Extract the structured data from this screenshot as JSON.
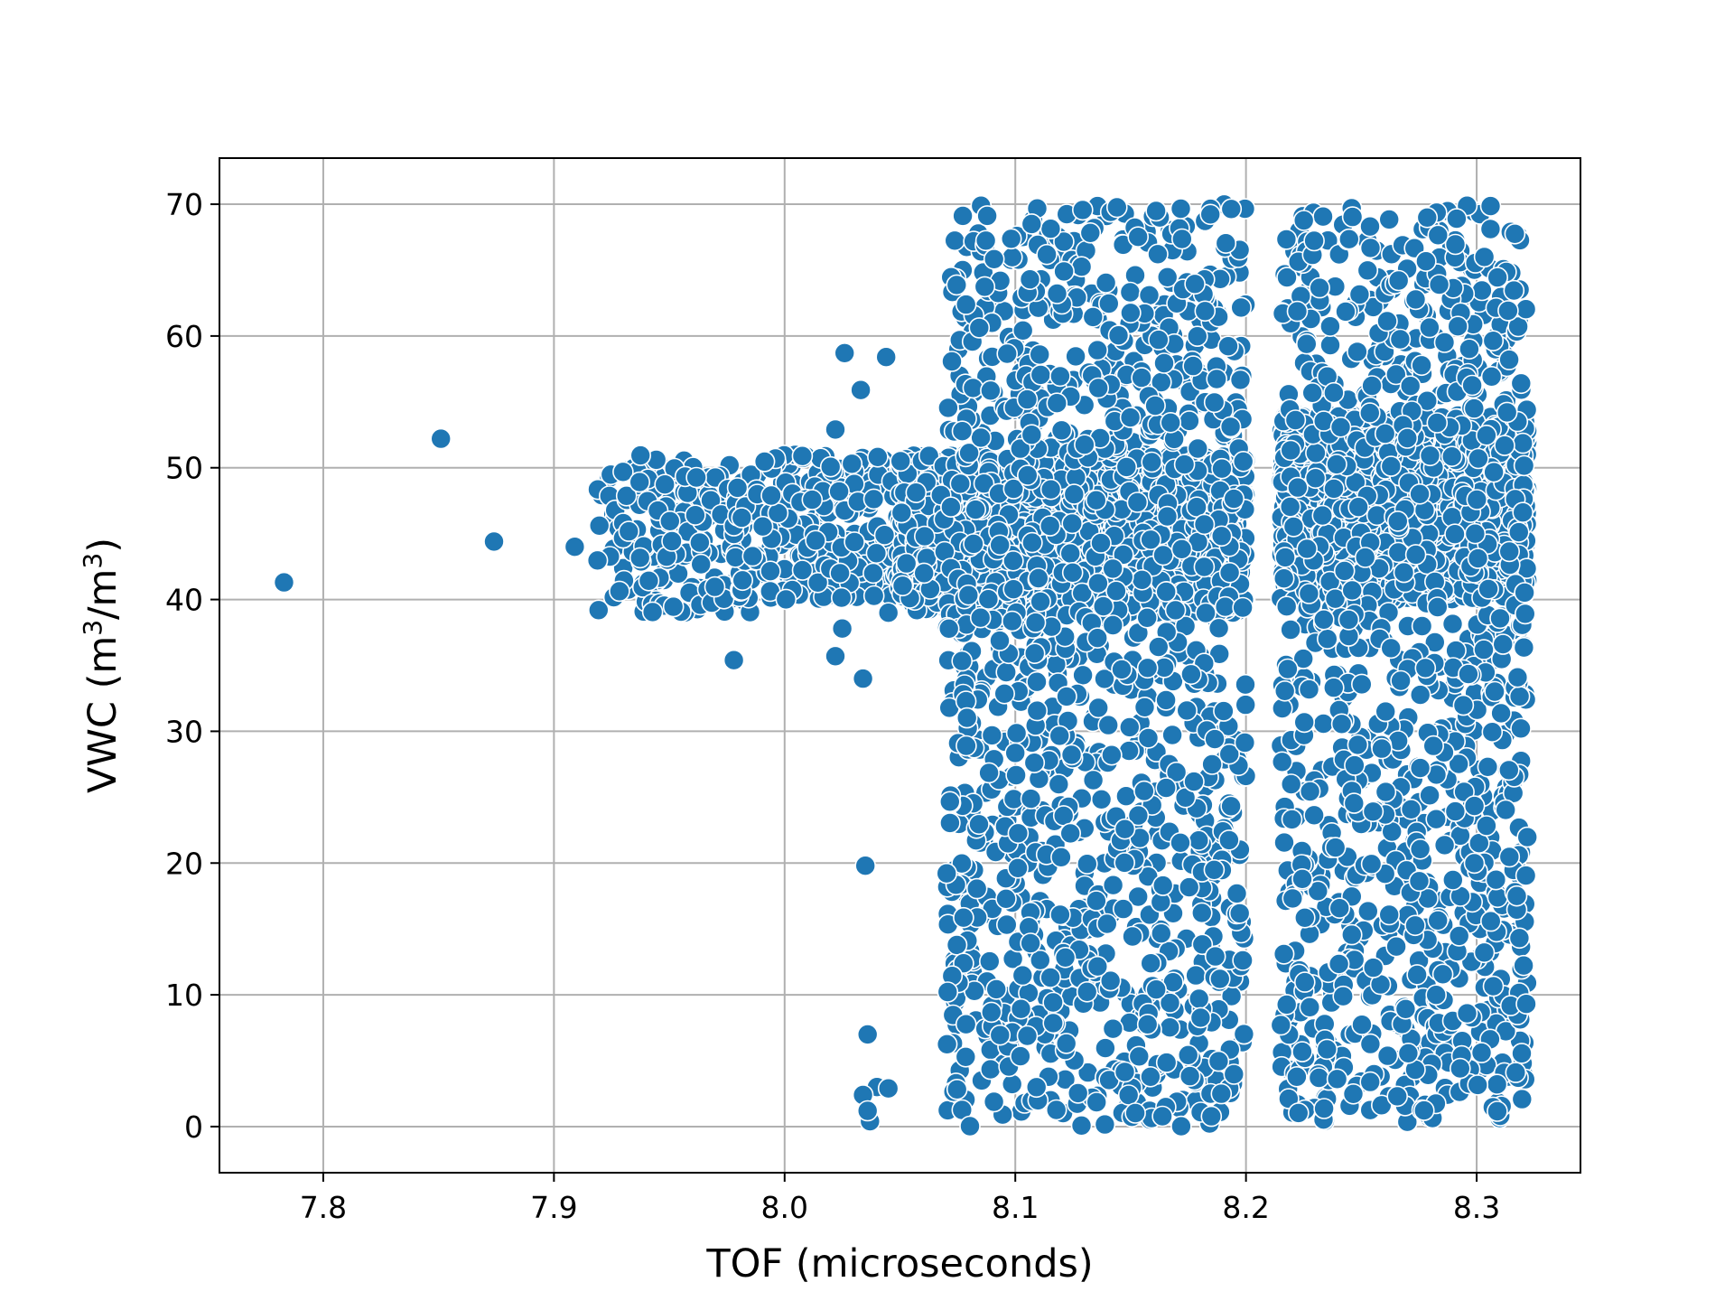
{
  "chart_data": {
    "type": "scatter",
    "title": "",
    "xlabel": "TOF (microseconds)",
    "ylabel": {
      "prefix": "VWC (m",
      "sup1": "3",
      "middle": "/m",
      "sup2": "3",
      "suffix": ")"
    },
    "xlim": [
      7.755,
      8.345
    ],
    "ylim": [
      -3.5,
      73.5
    ],
    "xticks": [
      7.8,
      7.9,
      8.0,
      8.1,
      8.2,
      8.3
    ],
    "xtick_labels": [
      "7.8",
      "7.9",
      "8.0",
      "8.1",
      "8.2",
      "8.3"
    ],
    "yticks": [
      0,
      10,
      20,
      30,
      40,
      50,
      60,
      70
    ],
    "ytick_labels": [
      "0",
      "10",
      "20",
      "30",
      "40",
      "50",
      "60",
      "70"
    ],
    "grid": true,
    "legend": "none",
    "point_color": "#1f77b4",
    "point_edge_color": "#ffffff",
    "points": {
      "x": [
        7.783,
        7.851,
        7.874,
        7.909,
        7.978,
        8.022,
        8.025,
        8.026,
        8.033,
        8.034,
        8.035,
        8.036,
        8.037,
        8.04,
        8.044,
        8.045,
        8.022,
        8.024,
        8.034,
        8.036,
        8.045
      ],
      "y": [
        41.3,
        52.2,
        44.4,
        44.0,
        35.4,
        35.7,
        37.8,
        58.7,
        55.9,
        34.0,
        19.8,
        7.0,
        0.4,
        3.0,
        58.4,
        39.0,
        52.9,
        42.0,
        2.4,
        1.2,
        2.9
      ]
    },
    "clusters": [
      {
        "x_range": [
          7.918,
          7.985
        ],
        "y_range": [
          39,
          51
        ],
        "count": 180
      },
      {
        "x_range": [
          7.978,
          8.06
        ],
        "y_range": [
          40,
          51
        ],
        "count": 300
      },
      {
        "x_range": [
          8.05,
          8.2
        ],
        "y_range": [
          39,
          51
        ],
        "count": 1400
      },
      {
        "x_range": [
          8.07,
          8.2
        ],
        "y_range": [
          0,
          70
        ],
        "count": 1300
      },
      {
        "x_range": [
          8.215,
          8.322
        ],
        "y_range": [
          40,
          54
        ],
        "count": 1500
      },
      {
        "x_range": [
          8.215,
          8.322
        ],
        "y_range": [
          0,
          70
        ],
        "count": 1100
      }
    ]
  }
}
